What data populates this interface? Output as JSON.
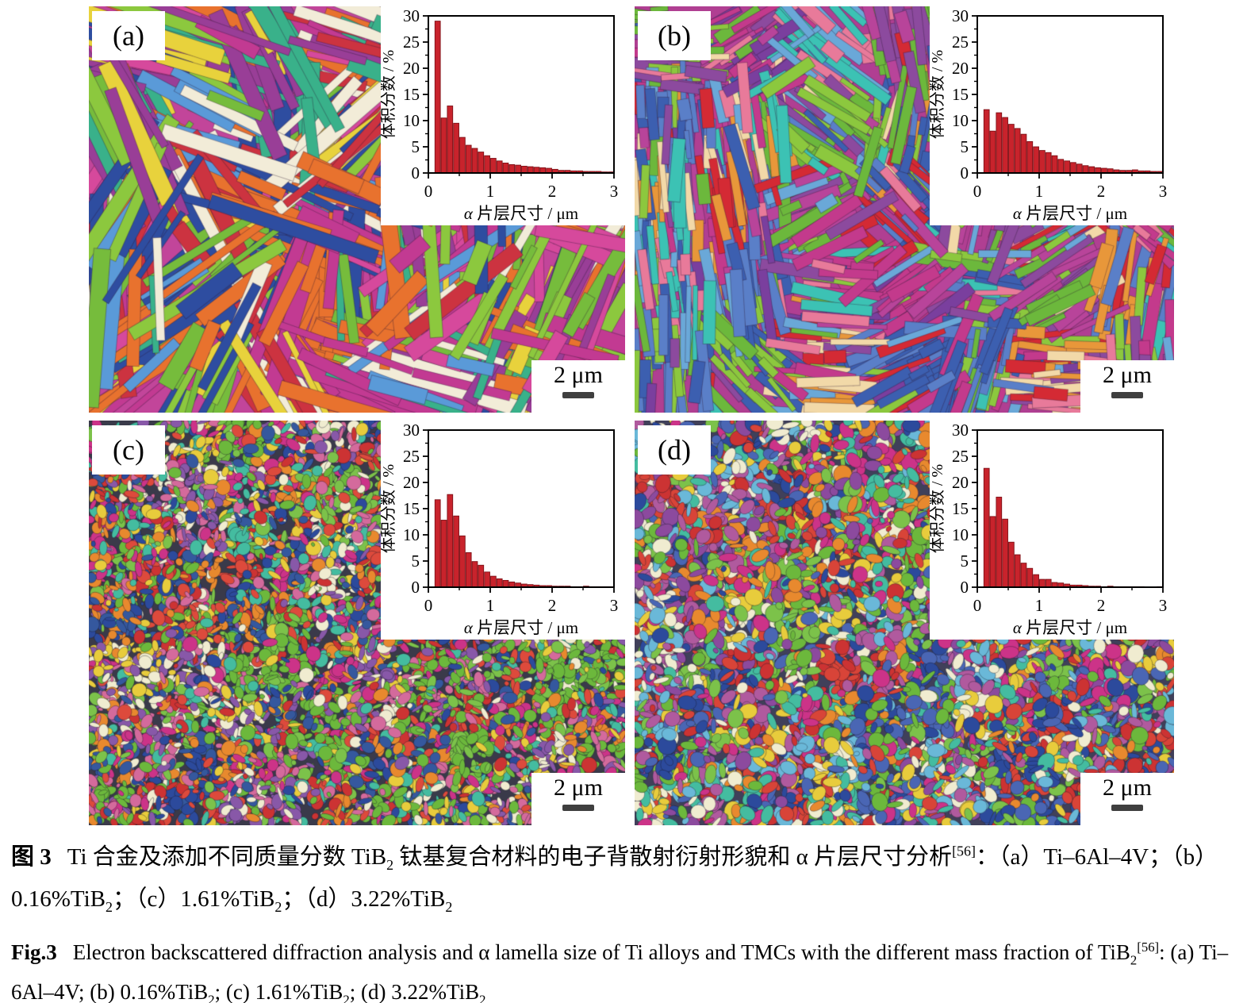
{
  "figure": {
    "panels": [
      {
        "id": "a",
        "label": "(a)",
        "scale_bar": "2 μm",
        "texture": {
          "style": "lath",
          "seed": 11,
          "background": "#c2459a",
          "palette": [
            "#d6499c",
            "#c23a92",
            "#e8722e",
            "#e8722e",
            "#2e4da0",
            "#2e4da0",
            "#76bc3c",
            "#8cc83e",
            "#993e97",
            "#39b18a",
            "#e8d23c",
            "#cc3340",
            "#f2ecd8",
            "#5a9ad8"
          ],
          "angles": [
            63,
            -38,
            18,
            88,
            -65
          ],
          "count": 850,
          "len": [
            50,
            230
          ],
          "wid": [
            7,
            22
          ]
        }
      },
      {
        "id": "b",
        "label": "(b)",
        "scale_bar": "2 μm",
        "texture": {
          "style": "lath",
          "seed": 22,
          "background": "#b03f92",
          "palette": [
            "#c33a8c",
            "#c33a8c",
            "#b8449a",
            "#8c4a9e",
            "#6cb83c",
            "#8cc83e",
            "#3c5fb0",
            "#5a7fc8",
            "#d42a34",
            "#e8973a",
            "#f2d9a8",
            "#3cc2b4",
            "#6aa8d8",
            "#e87a9a",
            "#7a3f9e"
          ],
          "angles": [
            85,
            -30,
            40,
            5,
            -75
          ],
          "count": 1500,
          "len": [
            22,
            110
          ],
          "wid": [
            6,
            16
          ]
        }
      },
      {
        "id": "c",
        "label": "(c)",
        "scale_bar": "2 μm",
        "texture": {
          "style": "grain",
          "seed": 33,
          "background": "#3a3a4a",
          "palette": [
            "#6cb83c",
            "#6cb83c",
            "#7cc24a",
            "#dd4a3c",
            "#cc3333",
            "#2c4a9c",
            "#35589e",
            "#e8892e",
            "#cc3388",
            "#44bca0",
            "#e8cc3c",
            "#f0ecd0",
            "#8858a8",
            "#d46a9c"
          ],
          "count": 7000,
          "size": [
            4,
            20
          ]
        }
      },
      {
        "id": "d",
        "label": "(d)",
        "scale_bar": "2 μm",
        "texture": {
          "style": "grain",
          "seed": 44,
          "background": "#40405a",
          "palette": [
            "#cc3333",
            "#d84438",
            "#2c4a9c",
            "#4a66b4",
            "#6cb83c",
            "#7cc24a",
            "#8c4a9e",
            "#e8892e",
            "#cc3388",
            "#44bca0",
            "#e8cc3c",
            "#f0ecd0",
            "#6ab8d8",
            "#b05a9e"
          ],
          "count": 6000,
          "size": [
            5,
            24
          ]
        }
      }
    ],
    "caption_cn": {
      "label": "图 3",
      "segments": [
        {
          "t": "Ti 合金及添加不同质量分数 TiB"
        },
        {
          "t": "2",
          "s": "sub"
        },
        {
          "t": " 钛基复合材料的电子背散射衍射形貌和 α 片层尺寸分析"
        },
        {
          "t": "[56]",
          "s": "sup"
        },
        {
          "t": "：（a）Ti–6Al–4V；（b）0.16%TiB"
        },
        {
          "t": "2",
          "s": "sub"
        },
        {
          "t": "；（c）1.61%TiB"
        },
        {
          "t": "2",
          "s": "sub"
        },
        {
          "t": "；（d）3.22%TiB"
        },
        {
          "t": "2",
          "s": "sub"
        }
      ]
    },
    "caption_en": {
      "label": "Fig.3",
      "segments": [
        {
          "t": "Electron backscattered diffraction analysis and α lamella size of Ti alloys and TMCs with the different mass fraction of TiB"
        },
        {
          "t": "2",
          "s": "sub"
        },
        {
          "t": "[56]",
          "s": "sup"
        },
        {
          "t": ": (a) Ti–6Al–4V; (b) 0.16%TiB"
        },
        {
          "t": "2",
          "s": "sub"
        },
        {
          "t": "; (c) 1.61%TiB"
        },
        {
          "t": "2",
          "s": "sub"
        },
        {
          "t": "; (d) 3.22%TiB"
        },
        {
          "t": "2",
          "s": "sub"
        }
      ]
    }
  },
  "chart_data": [
    {
      "type": "bar",
      "panel": "a",
      "title": "",
      "xlabel": "α 片层尺寸 / μm",
      "ylabel": "体积分数 / %",
      "xlim": [
        0,
        3
      ],
      "ylim": [
        0,
        30
      ],
      "xticks": [
        0,
        1,
        2,
        3
      ],
      "yticks": [
        0,
        5,
        10,
        15,
        20,
        25,
        30
      ],
      "bin_start": 0.1,
      "bin_width": 0.1,
      "bar_color": "#c8232c",
      "bar_edge": "#7e1016",
      "values": [
        29.0,
        10.5,
        12.8,
        9.5,
        6.8,
        5.3,
        4.7,
        4.0,
        3.3,
        2.8,
        2.3,
        1.9,
        1.6,
        1.5,
        1.3,
        1.2,
        1.1,
        1.0,
        0.9,
        0.7,
        0.5,
        0.5,
        0.4,
        0.4,
        0.3,
        0.3,
        0.3,
        0.2,
        0.2
      ]
    },
    {
      "type": "bar",
      "panel": "b",
      "title": "",
      "xlabel": "α 片层尺寸 / μm",
      "ylabel": "体积分数 / %",
      "xlim": [
        0,
        3
      ],
      "ylim": [
        0,
        30
      ],
      "xticks": [
        0,
        1,
        2,
        3
      ],
      "yticks": [
        0,
        5,
        10,
        15,
        20,
        25,
        30
      ],
      "bin_start": 0.1,
      "bin_width": 0.1,
      "bar_color": "#c8232c",
      "bar_edge": "#7e1016",
      "values": [
        12.1,
        8.0,
        11.5,
        10.6,
        9.3,
        8.5,
        7.4,
        6.0,
        5.0,
        4.3,
        3.9,
        3.3,
        2.6,
        2.3,
        2.0,
        1.7,
        1.4,
        1.2,
        1.0,
        0.9,
        0.8,
        0.6,
        0.5,
        0.5,
        0.6,
        0.4,
        0.4,
        0.3,
        0.3
      ]
    },
    {
      "type": "bar",
      "panel": "c",
      "title": "",
      "xlabel": "α 片层尺寸 / μm",
      "ylabel": "体积分数 / %",
      "xlim": [
        0,
        3
      ],
      "ylim": [
        0,
        30
      ],
      "xticks": [
        0,
        1,
        2,
        3
      ],
      "yticks": [
        0,
        5,
        10,
        15,
        20,
        25,
        30
      ],
      "bin_start": 0.1,
      "bin_width": 0.1,
      "bar_color": "#c8232c",
      "bar_edge": "#7e1016",
      "values": [
        16.7,
        12.8,
        17.7,
        13.6,
        9.8,
        6.6,
        4.9,
        4.2,
        2.9,
        2.1,
        1.6,
        1.3,
        1.0,
        0.8,
        0.6,
        0.5,
        0.4,
        0.3,
        0.3,
        0.2,
        0.2,
        0.2,
        0.1,
        0.1,
        0.2,
        0.1,
        0.1,
        0.1,
        0.1
      ]
    },
    {
      "type": "bar",
      "panel": "d",
      "title": "",
      "xlabel": "α 片层尺寸 / μm",
      "ylabel": "体积分数 / %",
      "xlim": [
        0,
        3
      ],
      "ylim": [
        0,
        30
      ],
      "xticks": [
        0,
        1,
        2,
        3
      ],
      "yticks": [
        0,
        5,
        10,
        15,
        20,
        25,
        30
      ],
      "bin_start": 0.1,
      "bin_width": 0.1,
      "bar_color": "#c8232c",
      "bar_edge": "#7e1016",
      "values": [
        22.7,
        13.5,
        17.2,
        13.0,
        8.6,
        6.2,
        4.6,
        3.6,
        2.4,
        1.5,
        1.5,
        0.9,
        0.8,
        0.6,
        0.4,
        0.4,
        0.3,
        0.2,
        0.2,
        0.1,
        0.2,
        0.1,
        0.1,
        0.1,
        0.1,
        0.1,
        0.05,
        0.05,
        0.1
      ]
    }
  ]
}
